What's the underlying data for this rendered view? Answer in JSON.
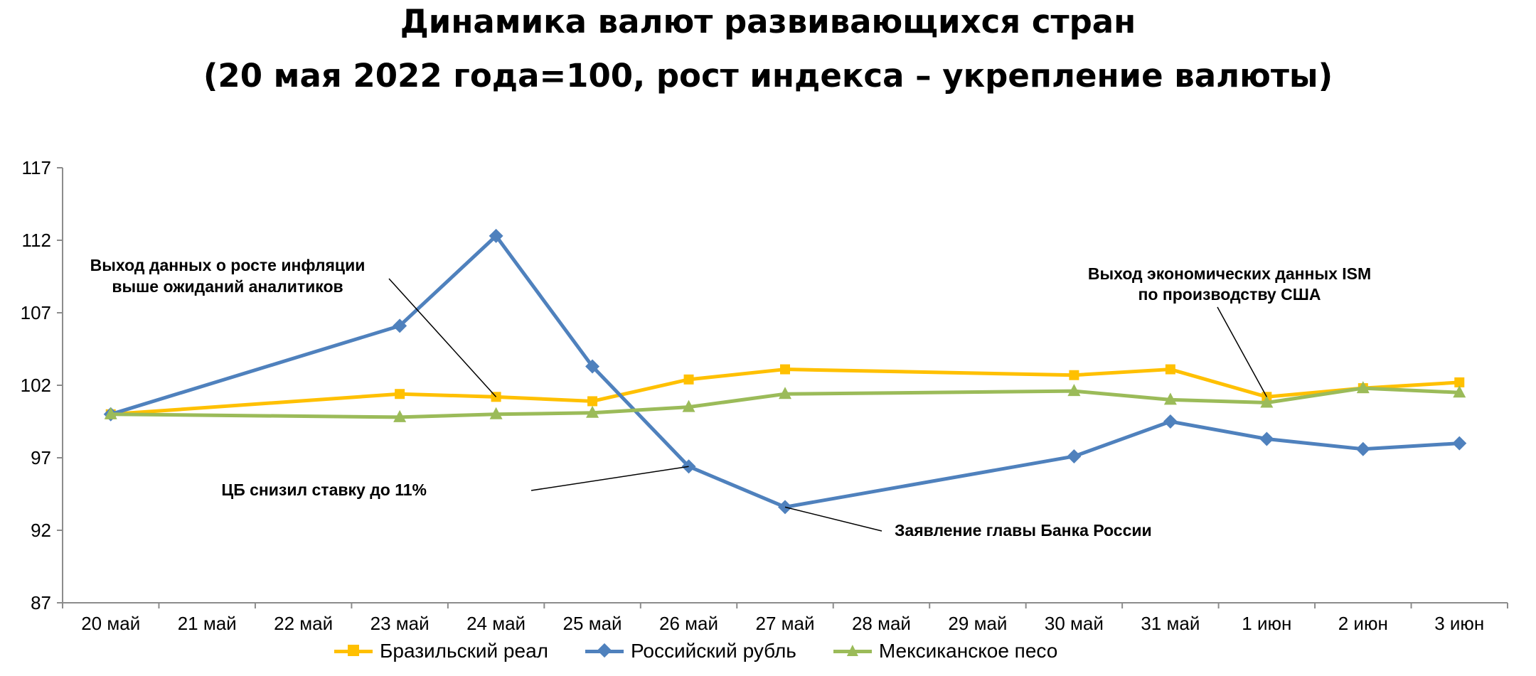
{
  "title_line1": "Динамика валют развивающихся стран",
  "title_line2": "(20 мая 2022 года=100, рост индекса – укрепление валюты)",
  "chart_data": {
    "type": "line",
    "categories": [
      "20 май",
      "21 май",
      "22 май",
      "23 май",
      "24 май",
      "25 май",
      "26 май",
      "27 май",
      "28 май",
      "29 май",
      "30 май",
      "31 май",
      "1 июн",
      "2 июн",
      "3 июн"
    ],
    "ylim": [
      87,
      117
    ],
    "yticks": [
      87,
      92,
      97,
      102,
      107,
      112,
      117
    ],
    "grid": false,
    "legend_position": "bottom",
    "series": [
      {
        "name": "Бразильский реал",
        "color": "#FFC000",
        "marker": "square",
        "values": [
          100,
          null,
          null,
          101.4,
          101.2,
          100.9,
          102.4,
          103.1,
          null,
          null,
          102.7,
          103.1,
          101.2,
          101.8,
          102.2
        ]
      },
      {
        "name": "Российский рубль",
        "color": "#4F81BD",
        "marker": "diamond",
        "values": [
          100,
          null,
          null,
          106.1,
          112.3,
          103.3,
          96.4,
          93.6,
          null,
          null,
          97.1,
          99.5,
          98.3,
          97.6,
          98.0
        ]
      },
      {
        "name": "Мексиканское песо",
        "color": "#9BBB59",
        "marker": "triangle",
        "values": [
          100,
          null,
          null,
          99.8,
          100.0,
          100.1,
          100.5,
          101.4,
          null,
          null,
          101.6,
          101.0,
          100.8,
          101.8,
          101.5
        ]
      }
    ],
    "annotations": [
      {
        "text": [
          "Выход данных о росте инфляции",
          "выше ожиданий аналитиков"
        ],
        "category_index": 4,
        "series": 0
      },
      {
        "text": [
          "ЦБ снизил ставку до 11%"
        ],
        "category_index": 6,
        "series": 1
      },
      {
        "text": [
          "Заявление главы Банка России"
        ],
        "category_index": 7,
        "series": 1
      },
      {
        "text": [
          "Выход экономических данных ISM",
          "по производству США"
        ],
        "category_index": 12,
        "series": 0
      }
    ]
  }
}
